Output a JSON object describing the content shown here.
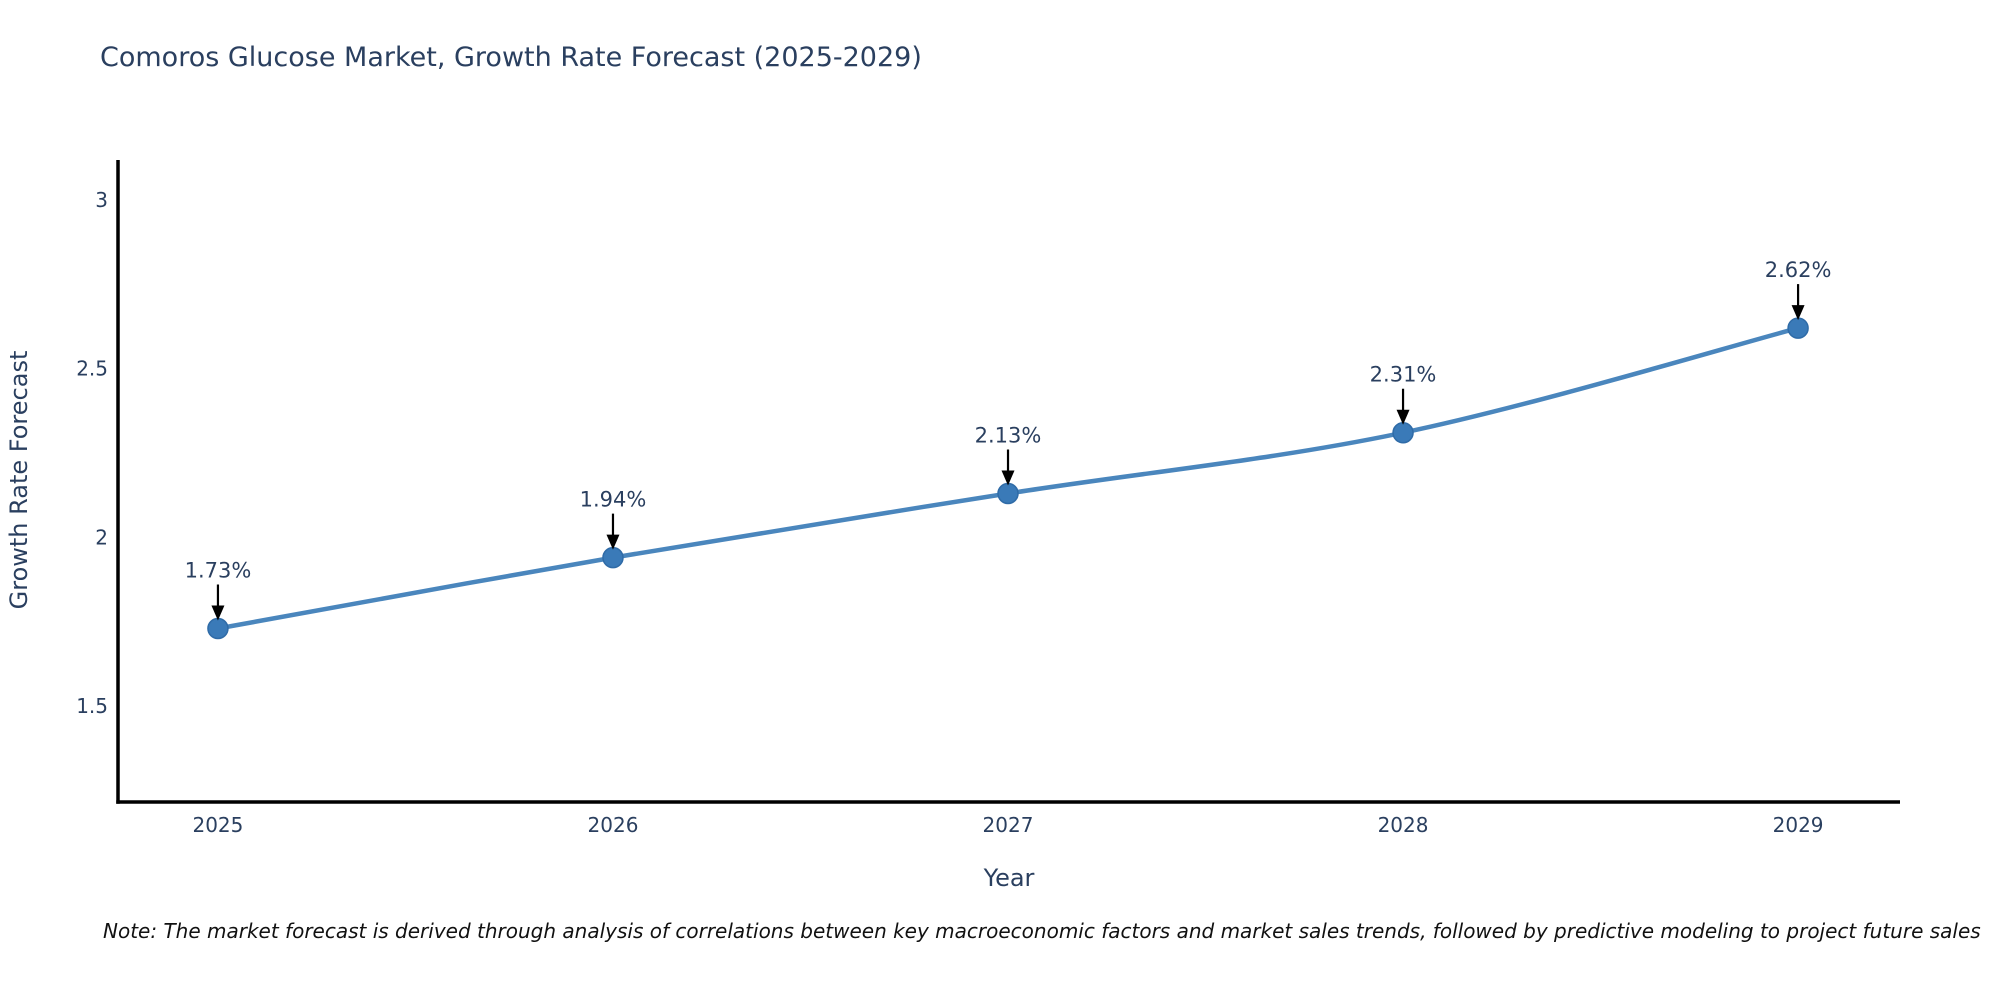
{
  "chart_data": {
    "type": "line",
    "title": "Comoros Glucose Market, Growth Rate Forecast (2025-2029)",
    "xlabel": "Year",
    "ylabel": "Growth Rate Forecast",
    "x": [
      2025,
      2026,
      2027,
      2028,
      2029
    ],
    "series": [
      {
        "name": "Growth Rate Forecast",
        "values": [
          1.73,
          1.94,
          2.13,
          2.31,
          2.62
        ]
      }
    ],
    "point_labels": [
      "1.73%",
      "1.94%",
      "2.13%",
      "2.31%",
      "2.62%"
    ],
    "xticks": [
      "2025",
      "2026",
      "2027",
      "2028",
      "2029"
    ],
    "yticks": [
      1.5,
      2,
      2.5,
      3
    ],
    "xlim": [
      2024.747,
      2029.258
    ],
    "ylim": [
      1.216,
      3.118
    ],
    "grid": false,
    "legend": "none",
    "line_shape": "spline",
    "colors": {
      "line": "#4a86bd",
      "marker_fill": "#3a7ab8",
      "marker_edge": "#2f6ba7",
      "axis": "#000000",
      "text": "#2a3f5f",
      "annotation_arrow": "#000000"
    }
  },
  "note": {
    "text": "Note: The market forecast is derived through analysis of correlations between key macroeconomic factors and market sales trends, followed by predictive modeling to project future sales"
  }
}
